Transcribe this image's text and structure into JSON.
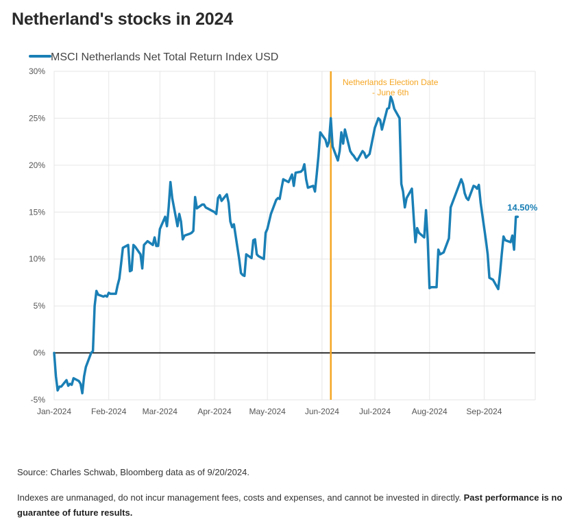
{
  "page": {
    "title": "Netherland's stocks in 2024",
    "source": "Source: Charles Schwab, Bloomberg data as of 9/20/2024.",
    "disclaimer": "Indexes are unmanaged, do not incur management fees, costs and expenses, and cannot be invested in directly.",
    "disclaimer_bold": "Past performance is no guarantee of future results."
  },
  "colors": {
    "series": "#1a7fb5",
    "event_line": "#f5a623",
    "event_text": "#f5a623",
    "grid": "#e6e6e6",
    "zero_line": "#000000",
    "axis_text": "#555555"
  },
  "chart_data": {
    "type": "line",
    "title": "",
    "xlabel": "",
    "ylabel": "",
    "ylim": [
      -5,
      30
    ],
    "y_ticks": [
      -5,
      0,
      5,
      10,
      15,
      20,
      25,
      30
    ],
    "y_tick_labels": [
      "-5%",
      "0%",
      "5%",
      "10%",
      "15%",
      "20%",
      "25%",
      "30%"
    ],
    "x_range": [
      "2024-01-01",
      "2024-09-30"
    ],
    "x_ticks": [
      "2024-01-01",
      "2024-02-01",
      "2024-03-01",
      "2024-04-01",
      "2024-05-01",
      "2024-06-01",
      "2024-07-01",
      "2024-08-01",
      "2024-09-01"
    ],
    "x_tick_labels": [
      "Jan-2024",
      "Feb-2024",
      "Mar-2024",
      "Apr-2024",
      "May-2024",
      "Jun-2024",
      "Jul-2024",
      "Aug-2024",
      "Sep-2024"
    ],
    "grid": true,
    "legend_position": "top-left",
    "series": [
      {
        "name": "MSCI Netherlands Net Total Return Index USD",
        "points": [
          [
            "2024-01-01",
            0.0
          ],
          [
            "2024-01-02",
            -2.5
          ],
          [
            "2024-01-03",
            -4.0
          ],
          [
            "2024-01-04",
            -3.6
          ],
          [
            "2024-01-05",
            -3.6
          ],
          [
            "2024-01-08",
            -2.9
          ],
          [
            "2024-01-09",
            -3.5
          ],
          [
            "2024-01-10",
            -3.3
          ],
          [
            "2024-01-11",
            -3.4
          ],
          [
            "2024-01-12",
            -2.7
          ],
          [
            "2024-01-15",
            -3.0
          ],
          [
            "2024-01-16",
            -3.3
          ],
          [
            "2024-01-17",
            -4.3
          ],
          [
            "2024-01-18",
            -2.5
          ],
          [
            "2024-01-19",
            -1.5
          ],
          [
            "2024-01-22",
            0.0
          ],
          [
            "2024-01-23",
            0.2
          ],
          [
            "2024-01-24",
            5.0
          ],
          [
            "2024-01-25",
            6.6
          ],
          [
            "2024-01-26",
            6.2
          ],
          [
            "2024-01-29",
            6.0
          ],
          [
            "2024-01-30",
            6.1
          ],
          [
            "2024-01-31",
            6.0
          ],
          [
            "2024-02-01",
            6.4
          ],
          [
            "2024-02-02",
            6.3
          ],
          [
            "2024-02-05",
            6.3
          ],
          [
            "2024-02-06",
            7.2
          ],
          [
            "2024-02-07",
            7.9
          ],
          [
            "2024-02-08",
            9.5
          ],
          [
            "2024-02-09",
            11.2
          ],
          [
            "2024-02-12",
            11.5
          ],
          [
            "2024-02-13",
            8.7
          ],
          [
            "2024-02-14",
            8.8
          ],
          [
            "2024-02-15",
            11.5
          ],
          [
            "2024-02-16",
            11.3
          ],
          [
            "2024-02-19",
            10.5
          ],
          [
            "2024-02-20",
            9.0
          ],
          [
            "2024-02-21",
            11.5
          ],
          [
            "2024-02-22",
            11.7
          ],
          [
            "2024-02-23",
            11.9
          ],
          [
            "2024-02-26",
            11.5
          ],
          [
            "2024-02-27",
            12.3
          ],
          [
            "2024-02-28",
            11.4
          ],
          [
            "2024-02-29",
            11.4
          ],
          [
            "2024-03-01",
            13.2
          ],
          [
            "2024-03-04",
            14.5
          ],
          [
            "2024-03-05",
            13.5
          ],
          [
            "2024-03-06",
            15.5
          ],
          [
            "2024-03-07",
            18.2
          ],
          [
            "2024-03-08",
            16.5
          ],
          [
            "2024-03-11",
            13.5
          ],
          [
            "2024-03-12",
            14.8
          ],
          [
            "2024-03-13",
            14.0
          ],
          [
            "2024-03-14",
            12.1
          ],
          [
            "2024-03-15",
            12.5
          ],
          [
            "2024-03-18",
            12.7
          ],
          [
            "2024-03-19",
            12.8
          ],
          [
            "2024-03-20",
            13.0
          ],
          [
            "2024-03-21",
            16.6
          ],
          [
            "2024-03-22",
            15.4
          ],
          [
            "2024-03-25",
            15.8
          ],
          [
            "2024-03-26",
            15.8
          ],
          [
            "2024-03-27",
            15.5
          ],
          [
            "2024-03-28",
            15.4
          ],
          [
            "2024-04-01",
            15.0
          ],
          [
            "2024-04-02",
            14.8
          ],
          [
            "2024-04-03",
            16.5
          ],
          [
            "2024-04-04",
            16.8
          ],
          [
            "2024-04-05",
            16.2
          ],
          [
            "2024-04-08",
            16.9
          ],
          [
            "2024-04-09",
            16.0
          ],
          [
            "2024-04-10",
            14.0
          ],
          [
            "2024-04-11",
            13.4
          ],
          [
            "2024-04-12",
            13.7
          ],
          [
            "2024-04-15",
            10.0
          ],
          [
            "2024-04-16",
            8.5
          ],
          [
            "2024-04-17",
            8.3
          ],
          [
            "2024-04-18",
            8.2
          ],
          [
            "2024-04-19",
            10.5
          ],
          [
            "2024-04-22",
            10.1
          ],
          [
            "2024-04-23",
            12.0
          ],
          [
            "2024-04-24",
            12.1
          ],
          [
            "2024-04-25",
            10.5
          ],
          [
            "2024-04-26",
            10.3
          ],
          [
            "2024-04-29",
            10.0
          ],
          [
            "2024-04-30",
            12.8
          ],
          [
            "2024-05-01",
            13.2
          ],
          [
            "2024-05-02",
            14.0
          ],
          [
            "2024-05-03",
            14.8
          ],
          [
            "2024-05-06",
            16.3
          ],
          [
            "2024-05-07",
            16.5
          ],
          [
            "2024-05-08",
            16.4
          ],
          [
            "2024-05-09",
            17.5
          ],
          [
            "2024-05-10",
            18.5
          ],
          [
            "2024-05-13",
            18.2
          ],
          [
            "2024-05-14",
            18.6
          ],
          [
            "2024-05-15",
            19.0
          ],
          [
            "2024-05-16",
            17.8
          ],
          [
            "2024-05-17",
            19.2
          ],
          [
            "2024-05-20",
            19.3
          ],
          [
            "2024-05-21",
            19.5
          ],
          [
            "2024-05-22",
            20.1
          ],
          [
            "2024-05-23",
            18.5
          ],
          [
            "2024-05-24",
            17.6
          ],
          [
            "2024-05-27",
            17.8
          ],
          [
            "2024-05-28",
            17.2
          ],
          [
            "2024-05-29",
            19.0
          ],
          [
            "2024-05-30",
            21.0
          ],
          [
            "2024-05-31",
            23.5
          ],
          [
            "2024-06-03",
            22.7
          ],
          [
            "2024-06-04",
            22.0
          ],
          [
            "2024-06-05",
            22.5
          ],
          [
            "2024-06-06",
            25.0
          ],
          [
            "2024-06-07",
            22.0
          ],
          [
            "2024-06-10",
            20.5
          ],
          [
            "2024-06-11",
            21.5
          ],
          [
            "2024-06-12",
            23.5
          ],
          [
            "2024-06-13",
            22.3
          ],
          [
            "2024-06-14",
            23.8
          ],
          [
            "2024-06-17",
            21.5
          ],
          [
            "2024-06-18",
            21.2
          ],
          [
            "2024-06-19",
            21.0
          ],
          [
            "2024-06-20",
            20.7
          ],
          [
            "2024-06-21",
            20.5
          ],
          [
            "2024-06-24",
            21.5
          ],
          [
            "2024-06-25",
            21.3
          ],
          [
            "2024-06-26",
            20.8
          ],
          [
            "2024-06-27",
            21.0
          ],
          [
            "2024-06-28",
            21.2
          ],
          [
            "2024-07-01",
            24.0
          ],
          [
            "2024-07-02",
            24.5
          ],
          [
            "2024-07-03",
            25.0
          ],
          [
            "2024-07-04",
            24.8
          ],
          [
            "2024-07-05",
            23.8
          ],
          [
            "2024-07-08",
            26.0
          ],
          [
            "2024-07-09",
            26.1
          ],
          [
            "2024-07-10",
            27.3
          ],
          [
            "2024-07-11",
            26.8
          ],
          [
            "2024-07-12",
            26.0
          ],
          [
            "2024-07-15",
            25.0
          ],
          [
            "2024-07-16",
            18.0
          ],
          [
            "2024-07-17",
            17.2
          ],
          [
            "2024-07-18",
            15.5
          ],
          [
            "2024-07-19",
            16.5
          ],
          [
            "2024-07-22",
            17.5
          ],
          [
            "2024-07-23",
            14.5
          ],
          [
            "2024-07-24",
            11.8
          ],
          [
            "2024-07-25",
            13.3
          ],
          [
            "2024-07-26",
            12.8
          ],
          [
            "2024-07-29",
            12.3
          ],
          [
            "2024-07-30",
            15.2
          ],
          [
            "2024-07-31",
            12.0
          ],
          [
            "2024-08-01",
            6.9
          ],
          [
            "2024-08-02",
            7.0
          ],
          [
            "2024-08-05",
            7.0
          ],
          [
            "2024-08-06",
            11.0
          ],
          [
            "2024-08-07",
            10.5
          ],
          [
            "2024-08-08",
            10.6
          ],
          [
            "2024-08-09",
            10.7
          ],
          [
            "2024-08-12",
            12.2
          ],
          [
            "2024-08-13",
            15.5
          ],
          [
            "2024-08-14",
            16.0
          ],
          [
            "2024-08-15",
            16.5
          ],
          [
            "2024-08-16",
            17.0
          ],
          [
            "2024-08-19",
            18.5
          ],
          [
            "2024-08-20",
            18.0
          ],
          [
            "2024-08-21",
            17.0
          ],
          [
            "2024-08-22",
            16.5
          ],
          [
            "2024-08-23",
            16.3
          ],
          [
            "2024-08-26",
            17.8
          ],
          [
            "2024-08-27",
            17.7
          ],
          [
            "2024-08-28",
            17.5
          ],
          [
            "2024-08-29",
            17.9
          ],
          [
            "2024-08-30",
            16.0
          ],
          [
            "2024-09-02",
            12.0
          ],
          [
            "2024-09-03",
            10.5
          ],
          [
            "2024-09-04",
            8.0
          ],
          [
            "2024-09-05",
            7.9
          ],
          [
            "2024-09-06",
            7.8
          ],
          [
            "2024-09-09",
            6.8
          ],
          [
            "2024-09-10",
            8.5
          ],
          [
            "2024-09-11",
            10.5
          ],
          [
            "2024-09-12",
            12.4
          ],
          [
            "2024-09-13",
            12.0
          ],
          [
            "2024-09-16",
            11.8
          ],
          [
            "2024-09-17",
            12.5
          ],
          [
            "2024-09-18",
            11.0
          ],
          [
            "2024-09-19",
            14.5
          ],
          [
            "2024-09-20",
            14.5
          ]
        ]
      }
    ],
    "annotations": [
      {
        "type": "vline",
        "x": "2024-06-06",
        "label_lines": [
          "Netherlands Election Date",
          "- June 6th"
        ]
      },
      {
        "type": "end-label",
        "x": "2024-09-20",
        "y": 14.5,
        "label": "14.50%"
      }
    ]
  }
}
